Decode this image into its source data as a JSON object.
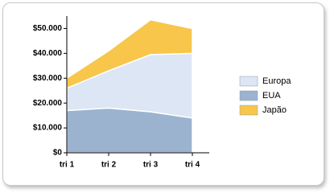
{
  "chart_data": {
    "type": "stacked-area",
    "categories": [
      "tri 1",
      "tri 2",
      "tri 3",
      "tri 4"
    ],
    "series": [
      {
        "name": "Europa",
        "color": "#dce6f4",
        "values": [
          9000,
          15000,
          23000,
          26000
        ]
      },
      {
        "name": "EUA",
        "color": "#9bb3cf",
        "values": [
          17000,
          18000,
          16500,
          14000
        ]
      },
      {
        "name": "Japão",
        "color": "#f7c64a",
        "values": [
          4000,
          8000,
          14000,
          10000
        ]
      }
    ],
    "ylim": [
      0,
      55000
    ],
    "yticks": [
      {
        "value": 0,
        "label": "$0"
      },
      {
        "value": 10000,
        "label": "$10.000"
      },
      {
        "value": 20000,
        "label": "$20.000"
      },
      {
        "value": 30000,
        "label": "$30.000"
      },
      {
        "value": 40000,
        "label": "$40.000"
      },
      {
        "value": 50000,
        "label": "$50.000"
      }
    ],
    "legend": "right"
  }
}
